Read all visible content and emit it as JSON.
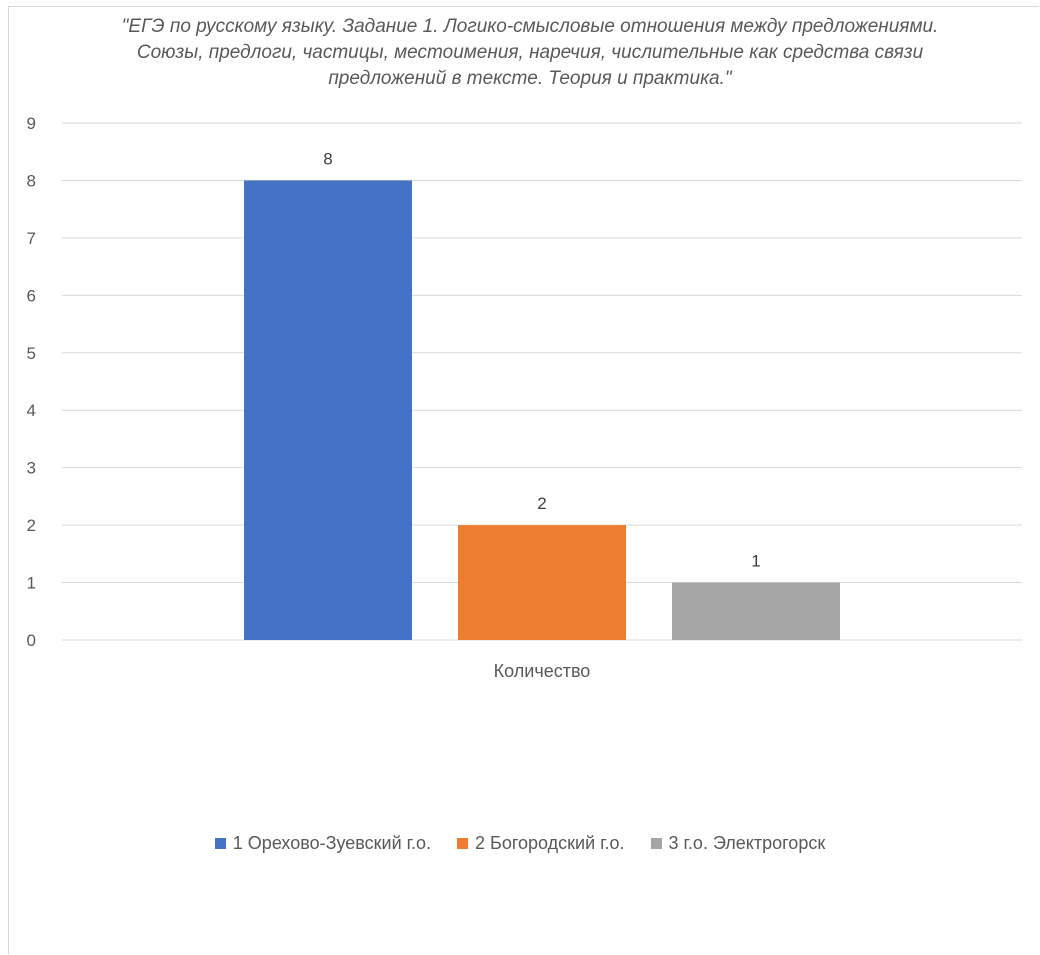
{
  "chart_data": {
    "type": "bar",
    "title": "\"ЕГЭ по русскому языку. Задание 1. Логико-смысловые отношения между предложениями. Союзы, предлоги, частицы, местоимения, наречия, числительные как средства связи предложений в тексте. Теория и практика.\"",
    "categories": [
      "Количество"
    ],
    "series": [
      {
        "name": "1 Орехово-Зуевский г.о.",
        "values": [
          8
        ],
        "color": "#4472c4"
      },
      {
        "name": "2 Богородский г.о.",
        "values": [
          2
        ],
        "color": "#ed7d31"
      },
      {
        "name": "3 г.о. Электрогорск",
        "values": [
          1
        ],
        "color": "#a5a5a5"
      }
    ],
    "ylim": [
      0,
      9
    ],
    "yticks": [
      "0",
      "1",
      "2",
      "3",
      "4",
      "5",
      "6",
      "7",
      "8",
      "9"
    ],
    "grid": true,
    "legend_position": "bottom",
    "data_labels": [
      "8",
      "2",
      "1"
    ]
  }
}
